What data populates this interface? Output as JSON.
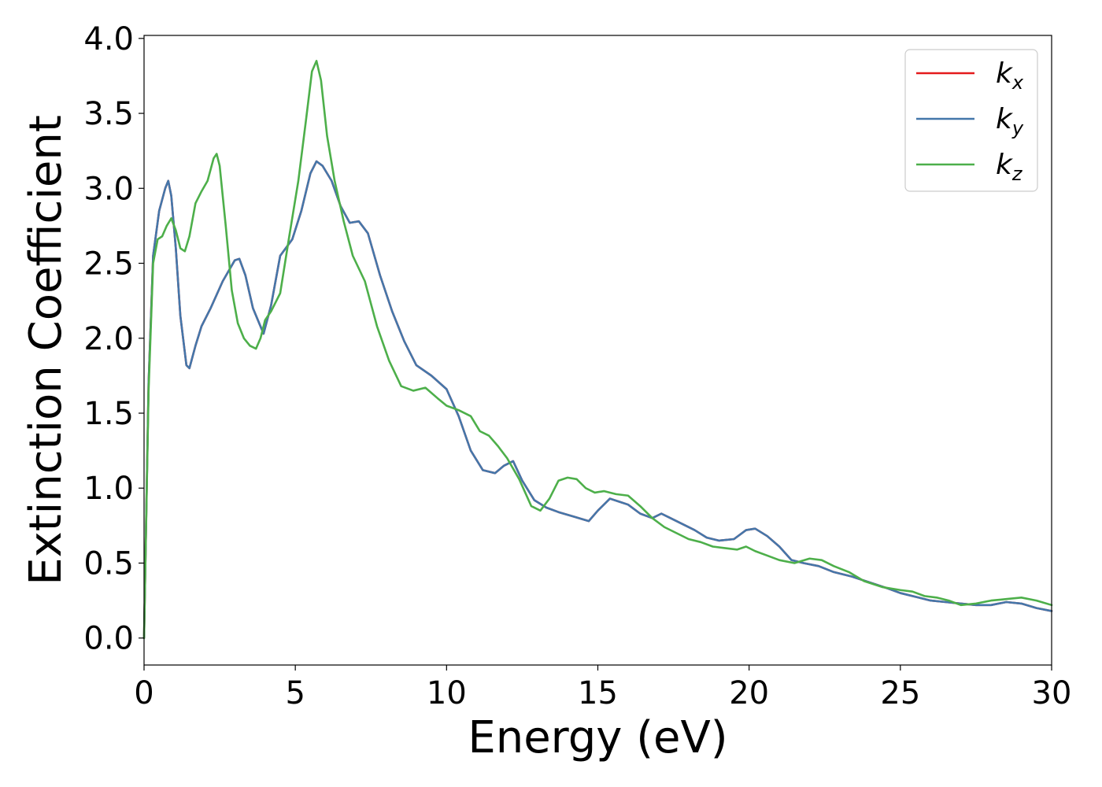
{
  "chart_data": {
    "type": "line",
    "xlabel": "Energy (eV)",
    "ylabel": "Extinction Coefficient",
    "xlim": [
      0,
      30
    ],
    "ylim": [
      -0.18,
      4.02
    ],
    "xticks": [
      "0",
      "5",
      "10",
      "15",
      "20",
      "25",
      "30"
    ],
    "yticks": [
      "0.0",
      "0.5",
      "1.0",
      "1.5",
      "2.0",
      "2.5",
      "3.0",
      "3.5",
      "4.0"
    ],
    "grid": false,
    "legend_position": "top-right",
    "series": [
      {
        "name": "k",
        "subscript": "x",
        "color": "#e41a1c",
        "x": [
          0,
          0.15,
          0.3,
          0.5,
          0.7,
          0.8,
          0.9,
          1.05,
          1.2,
          1.4,
          1.5,
          1.7,
          1.9,
          2.2,
          2.6,
          3.0,
          3.15,
          3.35,
          3.6,
          3.95,
          4.2,
          4.5,
          4.9,
          5.2,
          5.5,
          5.7,
          5.9,
          6.2,
          6.5,
          6.8,
          7.1,
          7.4,
          7.8,
          8.2,
          8.6,
          9.0,
          9.5,
          10.0,
          10.4,
          10.8,
          11.2,
          11.6,
          11.9,
          12.2,
          12.5,
          12.9,
          13.3,
          13.7,
          14.2,
          14.7,
          15.0,
          15.4,
          15.7,
          16.0,
          16.4,
          16.8,
          17.1,
          17.4,
          17.8,
          18.2,
          18.6,
          19.0,
          19.5,
          19.9,
          20.2,
          20.6,
          21.0,
          21.4,
          21.8,
          22.3,
          22.8,
          23.4,
          24.0,
          24.6,
          25.0,
          25.6,
          26.0,
          26.5,
          27.0,
          27.5,
          28.0,
          28.5,
          29.0,
          29.5,
          30.0
        ],
        "y": [
          0.0,
          1.7,
          2.55,
          2.85,
          3.0,
          3.05,
          2.95,
          2.6,
          2.15,
          1.82,
          1.8,
          1.95,
          2.08,
          2.2,
          2.38,
          2.52,
          2.53,
          2.42,
          2.2,
          2.03,
          2.22,
          2.55,
          2.66,
          2.85,
          3.1,
          3.18,
          3.15,
          3.05,
          2.88,
          2.77,
          2.78,
          2.7,
          2.42,
          2.18,
          1.98,
          1.82,
          1.75,
          1.66,
          1.48,
          1.25,
          1.12,
          1.1,
          1.15,
          1.18,
          1.05,
          0.92,
          0.87,
          0.84,
          0.81,
          0.78,
          0.85,
          0.93,
          0.91,
          0.89,
          0.83,
          0.8,
          0.83,
          0.8,
          0.76,
          0.72,
          0.67,
          0.65,
          0.66,
          0.72,
          0.73,
          0.68,
          0.61,
          0.52,
          0.5,
          0.48,
          0.44,
          0.41,
          0.37,
          0.33,
          0.3,
          0.27,
          0.25,
          0.24,
          0.23,
          0.22,
          0.22,
          0.24,
          0.23,
          0.2,
          0.18
        ]
      },
      {
        "name": "k",
        "subscript": "y",
        "color": "#4477aa",
        "x": [
          0,
          0.15,
          0.3,
          0.5,
          0.7,
          0.8,
          0.9,
          1.05,
          1.2,
          1.4,
          1.5,
          1.7,
          1.9,
          2.2,
          2.6,
          3.0,
          3.15,
          3.35,
          3.6,
          3.95,
          4.2,
          4.5,
          4.9,
          5.2,
          5.5,
          5.7,
          5.9,
          6.2,
          6.5,
          6.8,
          7.1,
          7.4,
          7.8,
          8.2,
          8.6,
          9.0,
          9.5,
          10.0,
          10.4,
          10.8,
          11.2,
          11.6,
          11.9,
          12.2,
          12.5,
          12.9,
          13.3,
          13.7,
          14.2,
          14.7,
          15.0,
          15.4,
          15.7,
          16.0,
          16.4,
          16.8,
          17.1,
          17.4,
          17.8,
          18.2,
          18.6,
          19.0,
          19.5,
          19.9,
          20.2,
          20.6,
          21.0,
          21.4,
          21.8,
          22.3,
          22.8,
          23.4,
          24.0,
          24.6,
          25.0,
          25.6,
          26.0,
          26.5,
          27.0,
          27.5,
          28.0,
          28.5,
          29.0,
          29.5,
          30.0
        ],
        "y": [
          0.0,
          1.7,
          2.55,
          2.85,
          3.0,
          3.05,
          2.95,
          2.6,
          2.15,
          1.82,
          1.8,
          1.95,
          2.08,
          2.2,
          2.38,
          2.52,
          2.53,
          2.42,
          2.2,
          2.03,
          2.22,
          2.55,
          2.66,
          2.85,
          3.1,
          3.18,
          3.15,
          3.05,
          2.88,
          2.77,
          2.78,
          2.7,
          2.42,
          2.18,
          1.98,
          1.82,
          1.75,
          1.66,
          1.48,
          1.25,
          1.12,
          1.1,
          1.15,
          1.18,
          1.05,
          0.92,
          0.87,
          0.84,
          0.81,
          0.78,
          0.85,
          0.93,
          0.91,
          0.89,
          0.83,
          0.8,
          0.83,
          0.8,
          0.76,
          0.72,
          0.67,
          0.65,
          0.66,
          0.72,
          0.73,
          0.68,
          0.61,
          0.52,
          0.5,
          0.48,
          0.44,
          0.41,
          0.37,
          0.33,
          0.3,
          0.27,
          0.25,
          0.24,
          0.23,
          0.22,
          0.22,
          0.24,
          0.23,
          0.2,
          0.18
        ]
      },
      {
        "name": "k",
        "subscript": "z",
        "color": "#4daf4a",
        "x": [
          0,
          0.15,
          0.3,
          0.45,
          0.6,
          0.75,
          0.9,
          1.05,
          1.2,
          1.35,
          1.5,
          1.7,
          1.9,
          2.1,
          2.3,
          2.4,
          2.5,
          2.7,
          2.9,
          3.1,
          3.3,
          3.5,
          3.7,
          3.85,
          4.0,
          4.2,
          4.5,
          4.8,
          5.1,
          5.35,
          5.55,
          5.7,
          5.85,
          6.05,
          6.3,
          6.6,
          6.9,
          7.3,
          7.7,
          8.1,
          8.5,
          8.9,
          9.3,
          9.7,
          10.0,
          10.4,
          10.8,
          11.1,
          11.4,
          11.7,
          12.0,
          12.4,
          12.8,
          13.1,
          13.4,
          13.7,
          14.0,
          14.3,
          14.6,
          14.9,
          15.2,
          15.6,
          16.0,
          16.4,
          16.8,
          17.2,
          17.6,
          18.0,
          18.4,
          18.8,
          19.2,
          19.6,
          19.9,
          20.2,
          20.6,
          21.0,
          21.5,
          22.0,
          22.4,
          22.8,
          23.3,
          23.8,
          24.4,
          25.0,
          25.4,
          25.8,
          26.2,
          26.6,
          27.0,
          27.5,
          28.0,
          28.5,
          29.0,
          29.5,
          30.0
        ],
        "y": [
          0.0,
          1.65,
          2.5,
          2.66,
          2.68,
          2.75,
          2.8,
          2.72,
          2.6,
          2.58,
          2.68,
          2.9,
          2.98,
          3.05,
          3.2,
          3.23,
          3.15,
          2.75,
          2.32,
          2.1,
          2.0,
          1.95,
          1.93,
          2.0,
          2.12,
          2.18,
          2.3,
          2.68,
          3.05,
          3.45,
          3.78,
          3.85,
          3.72,
          3.35,
          3.05,
          2.78,
          2.55,
          2.38,
          2.08,
          1.85,
          1.68,
          1.65,
          1.67,
          1.6,
          1.55,
          1.52,
          1.48,
          1.38,
          1.35,
          1.28,
          1.2,
          1.06,
          0.88,
          0.85,
          0.93,
          1.05,
          1.07,
          1.06,
          1.0,
          0.97,
          0.98,
          0.96,
          0.95,
          0.88,
          0.8,
          0.74,
          0.7,
          0.66,
          0.64,
          0.61,
          0.6,
          0.59,
          0.61,
          0.58,
          0.55,
          0.52,
          0.5,
          0.53,
          0.52,
          0.48,
          0.44,
          0.38,
          0.34,
          0.32,
          0.31,
          0.28,
          0.27,
          0.25,
          0.22,
          0.23,
          0.25,
          0.26,
          0.27,
          0.25,
          0.22
        ]
      }
    ]
  }
}
